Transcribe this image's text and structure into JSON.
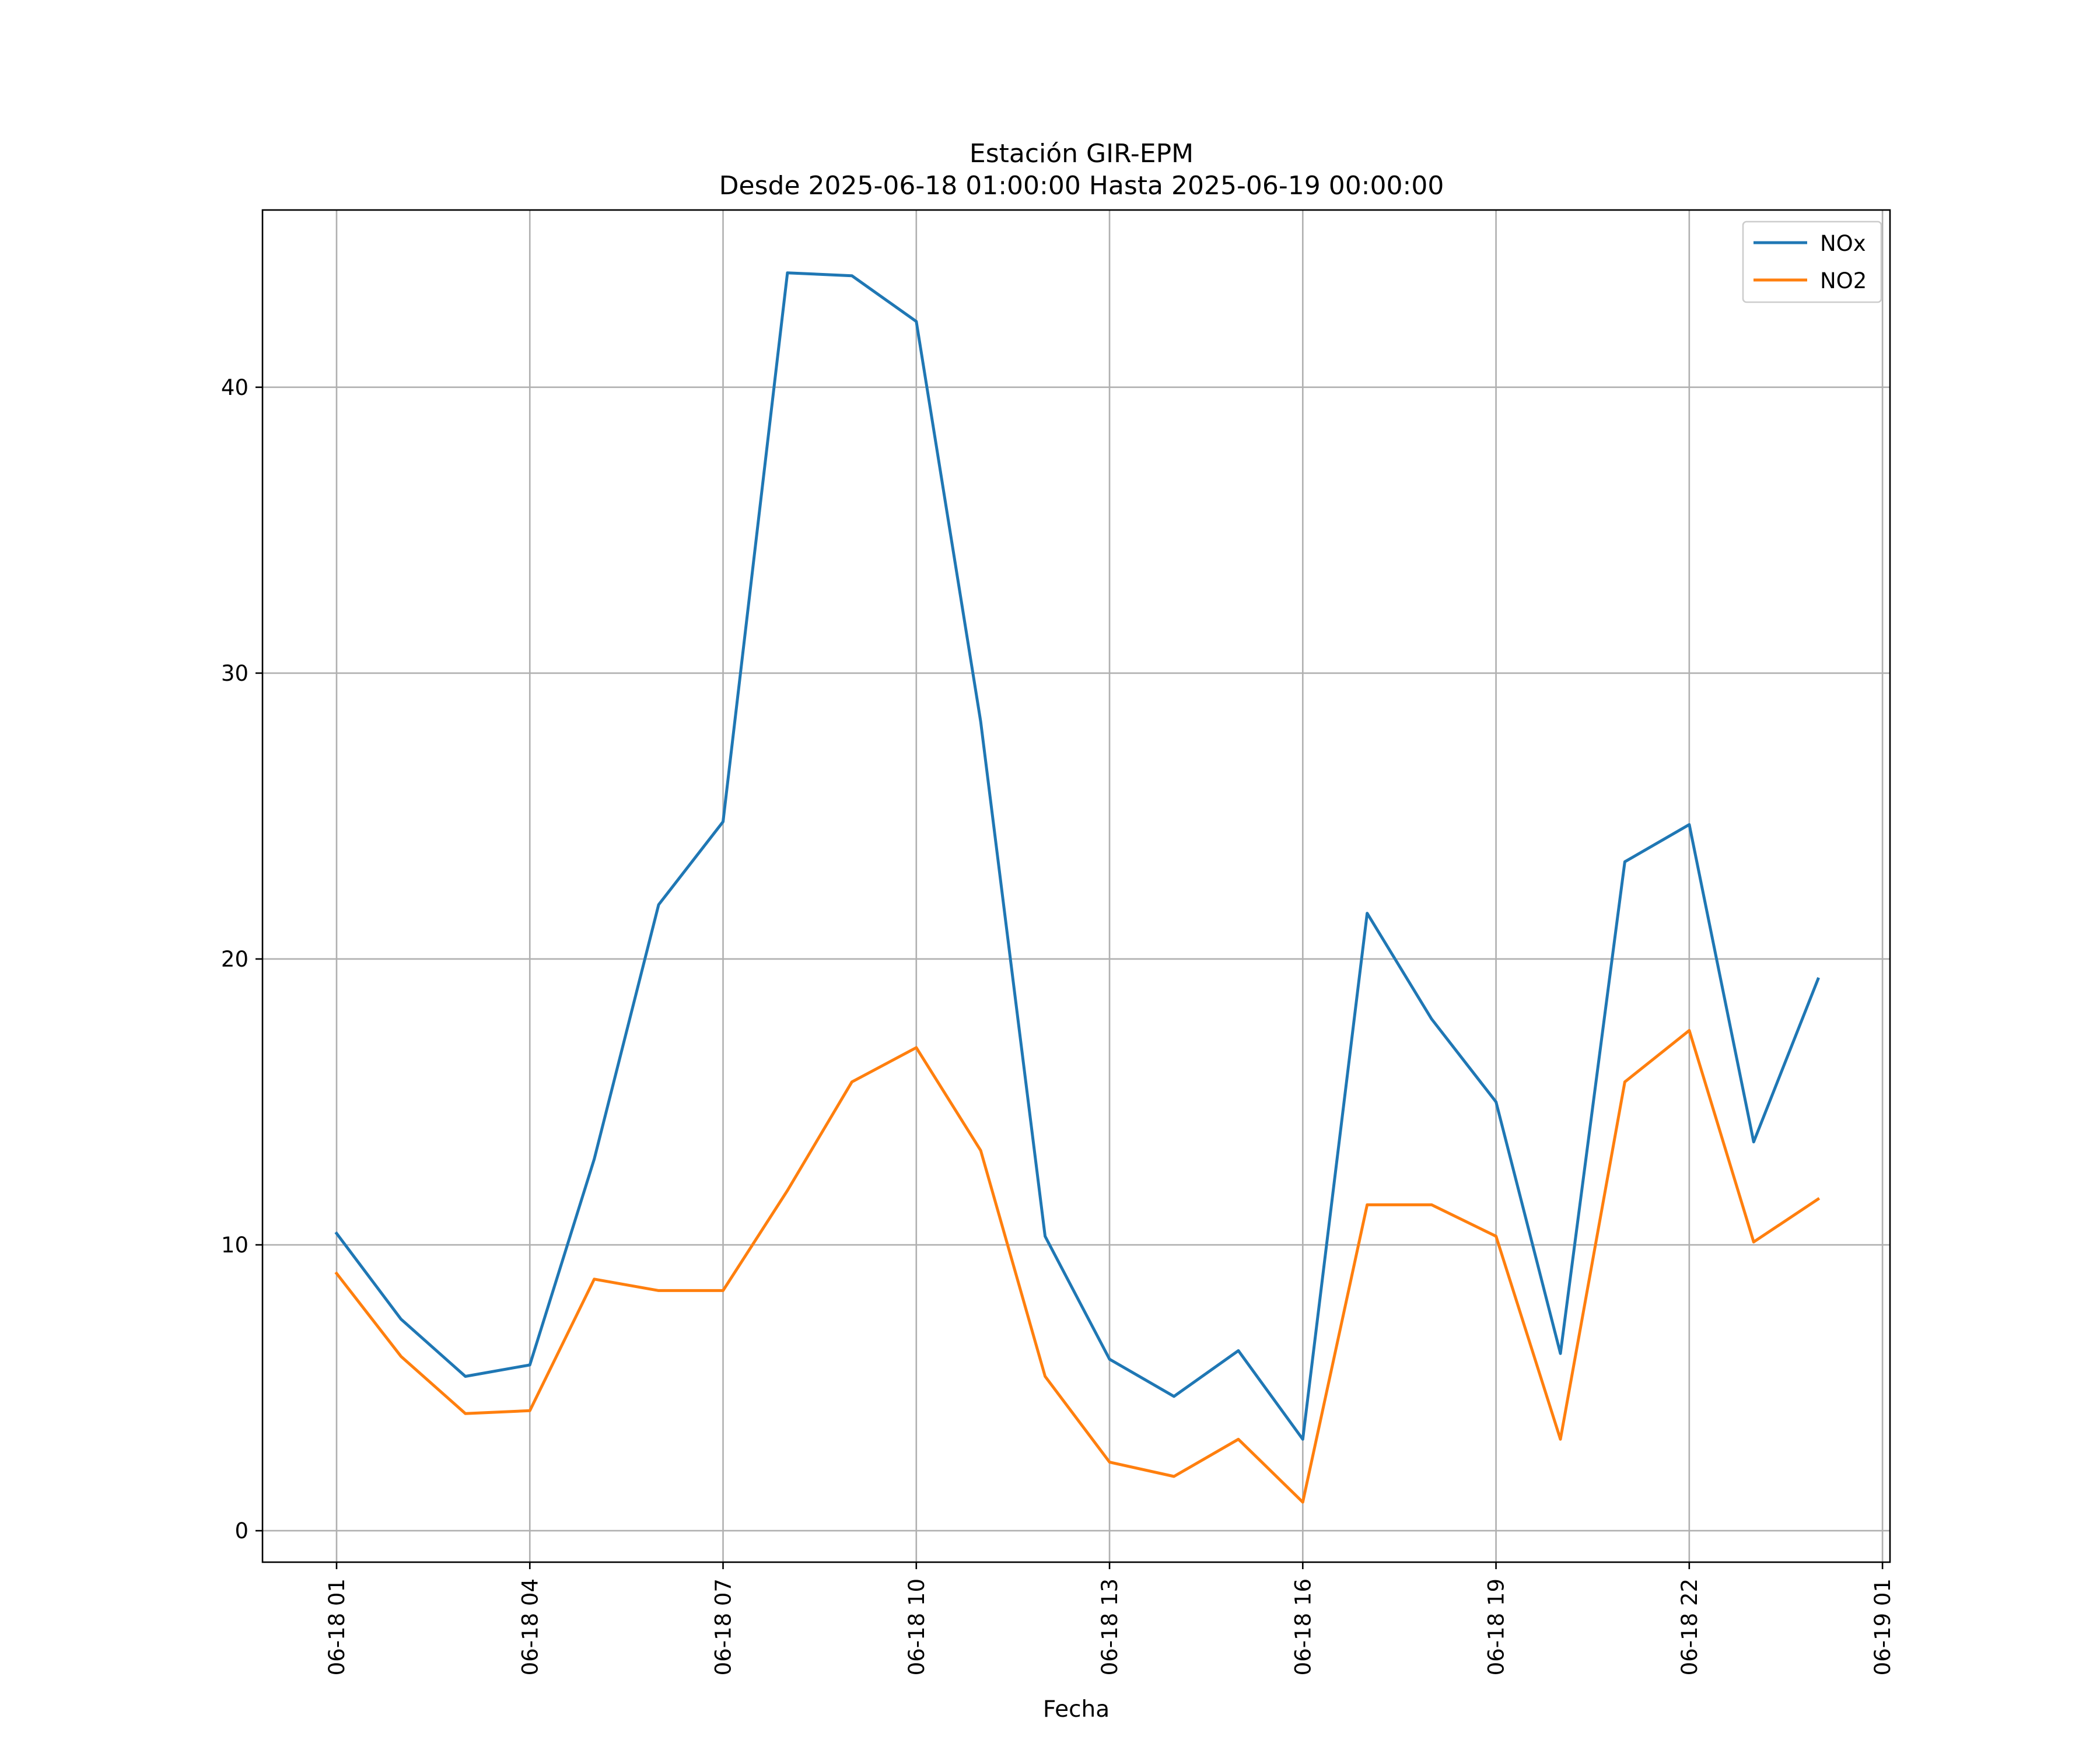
{
  "chart_data": {
    "type": "line",
    "title": "Estación GIR-EPM",
    "subtitle": "Desde 2025-06-18 01:00:00 Hasta 2025-06-19 00:00:00",
    "xlabel": "Fecha",
    "ylabel": "",
    "x": [
      "2025-06-18 01:00",
      "2025-06-18 02:00",
      "2025-06-18 03:00",
      "2025-06-18 04:00",
      "2025-06-18 05:00",
      "2025-06-18 06:00",
      "2025-06-18 07:00",
      "2025-06-18 08:00",
      "2025-06-18 09:00",
      "2025-06-18 10:00",
      "2025-06-18 11:00",
      "2025-06-18 12:00",
      "2025-06-18 13:00",
      "2025-06-18 14:00",
      "2025-06-18 15:00",
      "2025-06-18 16:00",
      "2025-06-18 17:00",
      "2025-06-18 18:00",
      "2025-06-18 19:00",
      "2025-06-18 20:00",
      "2025-06-18 21:00",
      "2025-06-18 22:00",
      "2025-06-18 23:00",
      "2025-06-19 00:00"
    ],
    "xlim": [
      "2025-06-17 23:51",
      "2025-06-19 01:07"
    ],
    "xticks": [
      "06-18 01",
      "06-18 04",
      "06-18 07",
      "06-18 10",
      "06-18 13",
      "06-18 16",
      "06-18 19",
      "06-18 22",
      "06-19 01"
    ],
    "xtick_values": [
      "2025-06-18 01:00",
      "2025-06-18 04:00",
      "2025-06-18 07:00",
      "2025-06-18 10:00",
      "2025-06-18 13:00",
      "2025-06-18 16:00",
      "2025-06-18 19:00",
      "2025-06-18 22:00",
      "2025-06-19 01:00"
    ],
    "ylim": [
      -1.1,
      46.2
    ],
    "yticks": [
      0,
      10,
      20,
      30,
      40
    ],
    "grid": true,
    "legend": "top-right",
    "series": [
      {
        "name": "NOx",
        "color": "#1f77b4",
        "values": [
          10.4,
          7.4,
          5.4,
          5.8,
          13.0,
          21.9,
          24.8,
          44.0,
          43.9,
          42.3,
          28.3,
          10.3,
          6.0,
          4.7,
          6.3,
          3.2,
          21.6,
          17.9,
          15.0,
          6.2,
          23.4,
          24.7,
          13.6,
          19.3
        ]
      },
      {
        "name": "NO2",
        "color": "#ff7f0e",
        "values": [
          9.0,
          6.1,
          4.1,
          4.2,
          8.8,
          8.4,
          8.4,
          11.9,
          15.7,
          16.9,
          13.3,
          5.4,
          2.4,
          1.9,
          3.2,
          1.0,
          11.4,
          11.4,
          10.3,
          3.2,
          15.7,
          17.5,
          10.1,
          11.6
        ]
      }
    ]
  }
}
